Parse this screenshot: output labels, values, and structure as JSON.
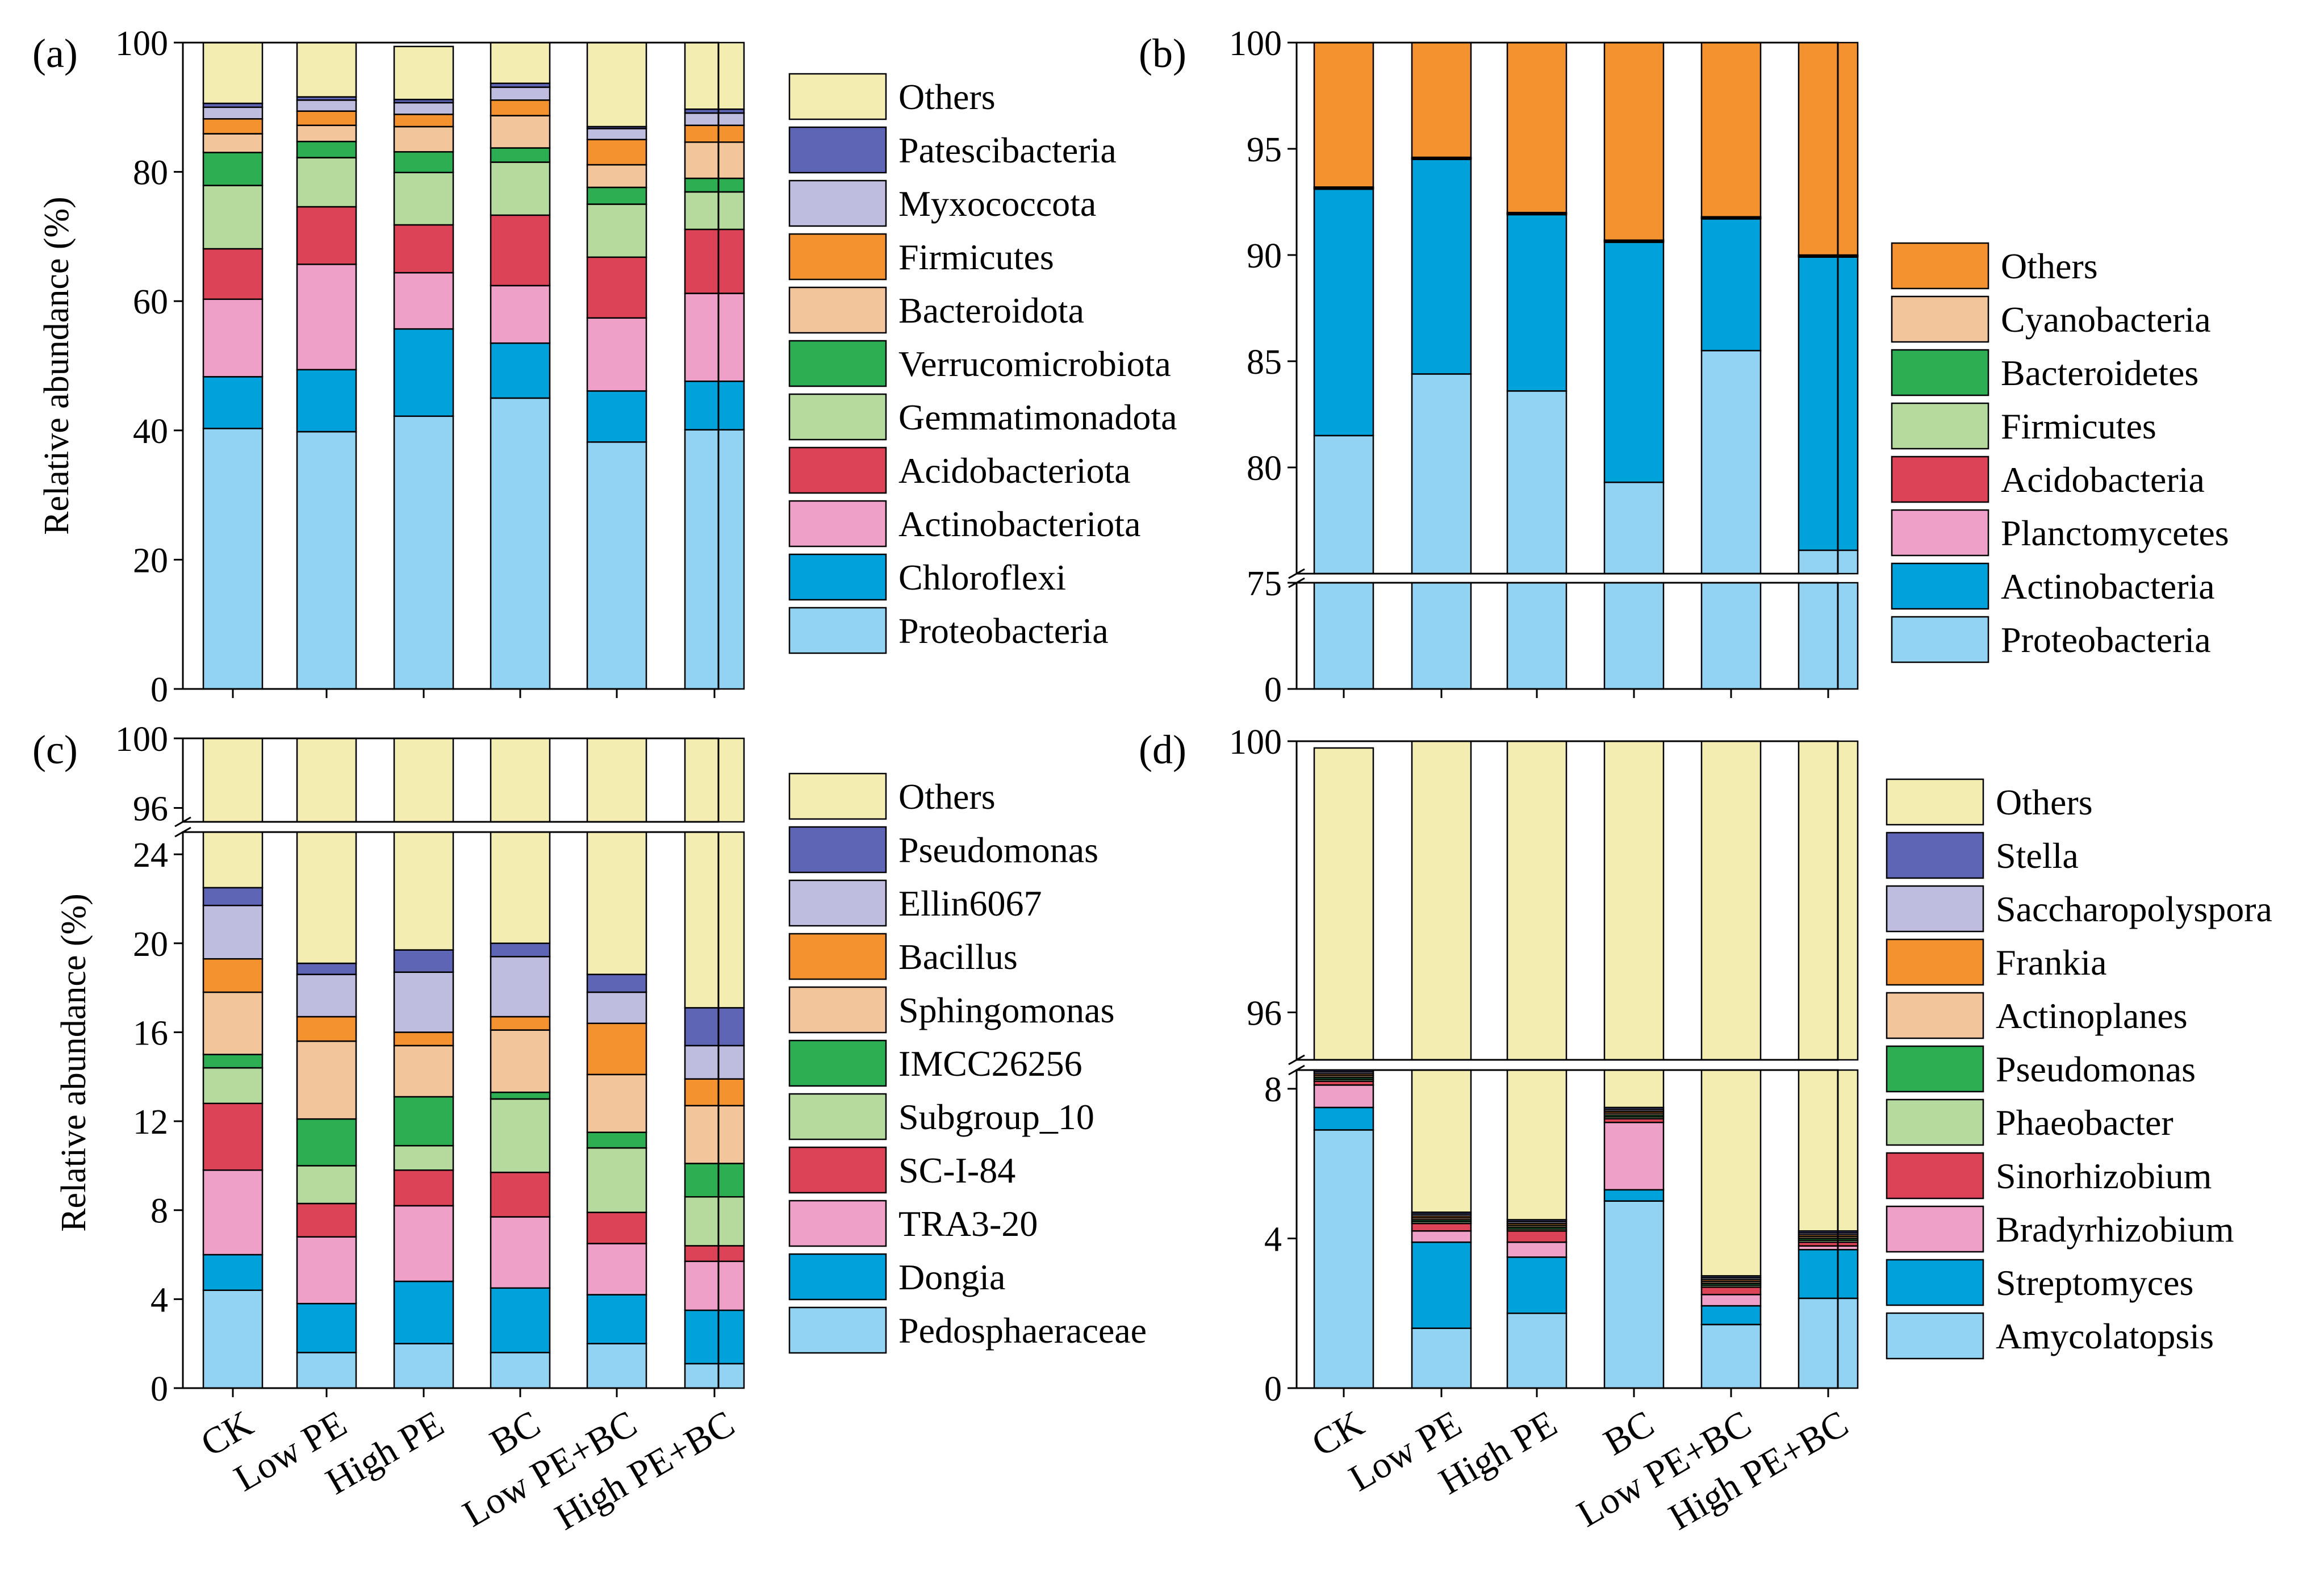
{
  "categories": [
    "CK",
    "Low PE",
    "High PE",
    "BC",
    "Low PE+BC",
    "High PE+BC"
  ],
  "chart_data": [
    {
      "panel": "(a)",
      "type": "stacked-bar",
      "ylabel": "Relative abundance (%)",
      "ylim": [
        0,
        100
      ],
      "yticks": [
        "0",
        "20",
        "40",
        "60",
        "80",
        "100"
      ],
      "series": [
        {
          "name": "Proteobacteria",
          "color": "#92D2F2",
          "values": [
            40.3,
            39.8,
            42.2,
            45.0,
            38.2,
            40.1
          ]
        },
        {
          "name": "Chloroflexi",
          "color": "#00A2DC",
          "values": [
            8.0,
            9.6,
            13.5,
            8.5,
            7.9,
            7.5
          ]
        },
        {
          "name": "Actinobacteriota",
          "color": "#EEA0C8",
          "values": [
            12.0,
            16.3,
            8.7,
            8.9,
            11.3,
            13.6
          ]
        },
        {
          "name": "Acidobacteriota",
          "color": "#DD4357",
          "values": [
            7.8,
            8.9,
            7.4,
            10.9,
            9.4,
            9.9
          ]
        },
        {
          "name": "Gemmatimonadota",
          "color": "#B5DA9E",
          "values": [
            9.8,
            7.6,
            8.1,
            8.2,
            8.2,
            5.8
          ]
        },
        {
          "name": "Verrucomicrobiota",
          "color": "#2EAE52",
          "values": [
            5.1,
            2.5,
            3.2,
            2.2,
            2.6,
            2.1
          ]
        },
        {
          "name": "Bacteroidota",
          "color": "#F2C69A",
          "values": [
            2.9,
            2.5,
            3.9,
            5.0,
            3.5,
            5.6
          ]
        },
        {
          "name": "Firmicutes",
          "color": "#F49230",
          "values": [
            2.3,
            2.2,
            1.9,
            2.4,
            3.9,
            2.6
          ]
        },
        {
          "name": "Myxococcota",
          "color": "#BFBDDF",
          "values": [
            1.8,
            1.7,
            1.8,
            2.0,
            1.7,
            1.9
          ]
        },
        {
          "name": "Patescibacteria",
          "color": "#5E65B4",
          "values": [
            0.6,
            0.5,
            0.5,
            0.6,
            0.3,
            0.6
          ]
        },
        {
          "name": "Others",
          "color": "#F3EDB1",
          "values": [
            9.4,
            8.4,
            8.2,
            6.3,
            13.3,
            10.3
          ]
        }
      ]
    },
    {
      "panel": "(b)",
      "type": "stacked-bar",
      "ylim_lower": [
        0,
        75
      ],
      "ylim_upper": [
        75,
        100
      ],
      "yticks_upper": [
        "75",
        "80",
        "85",
        "90",
        "95",
        "100"
      ],
      "yticks_lower": [
        "0"
      ],
      "series": [
        {
          "name": "Proteobacteria",
          "color": "#92D2F2",
          "values": [
            81.5,
            84.4,
            83.6,
            79.3,
            85.5,
            76.1
          ]
        },
        {
          "name": "Actinobacteria",
          "color": "#00A2DC",
          "values": [
            11.6,
            10.1,
            8.3,
            11.3,
            6.2,
            13.8
          ]
        },
        {
          "name": "Planctomycetes",
          "color": "#EEA0C8",
          "values": [
            0.03,
            0.03,
            0.03,
            0.03,
            0.03,
            0.03
          ]
        },
        {
          "name": "Acidobacteria",
          "color": "#DD4357",
          "values": [
            0.02,
            0.02,
            0.02,
            0.02,
            0.02,
            0.02
          ]
        },
        {
          "name": "Firmicutes",
          "color": "#B5DA9E",
          "values": [
            0.02,
            0.02,
            0.02,
            0.02,
            0.02,
            0.02
          ]
        },
        {
          "name": "Bacteroidetes",
          "color": "#2EAE52",
          "values": [
            0.02,
            0.02,
            0.02,
            0.02,
            0.02,
            0.02
          ]
        },
        {
          "name": "Cyanobacteria",
          "color": "#F2C69A",
          "values": [
            0.01,
            0.01,
            0.01,
            0.01,
            0.01,
            0.01
          ]
        },
        {
          "name": "Others",
          "color": "#F49230",
          "values": [
            6.8,
            5.4,
            8.0,
            9.3,
            8.2,
            10.0
          ]
        }
      ]
    },
    {
      "panel": "(c)",
      "type": "stacked-bar",
      "ylabel": "Relative abundance (%)",
      "ylim_lower": [
        0,
        25
      ],
      "ylim_upper": [
        95.2,
        100
      ],
      "yticks_lower": [
        "0",
        "4",
        "8",
        "12",
        "16",
        "20",
        "24"
      ],
      "yticks_upper": [
        "96",
        "100"
      ],
      "series": [
        {
          "name": "Pedosphaeraceae",
          "color": "#92D2F2",
          "values": [
            4.4,
            1.6,
            2.0,
            1.6,
            2.0,
            1.1
          ]
        },
        {
          "name": "Dongia",
          "color": "#00A2DC",
          "values": [
            1.6,
            2.2,
            2.8,
            2.9,
            2.2,
            2.4
          ]
        },
        {
          "name": "TRA3-20",
          "color": "#EEA0C8",
          "values": [
            3.8,
            3.0,
            3.4,
            3.2,
            2.3,
            2.2
          ]
        },
        {
          "name": "SC-I-84",
          "color": "#DD4357",
          "values": [
            3.0,
            1.5,
            1.6,
            2.0,
            1.4,
            0.7
          ]
        },
        {
          "name": "Subgroup_10",
          "color": "#B5DA9E",
          "values": [
            1.6,
            1.7,
            1.1,
            3.3,
            2.9,
            2.2
          ]
        },
        {
          "name": "IMCC26256",
          "color": "#2EAE52",
          "values": [
            0.6,
            2.1,
            2.2,
            0.3,
            0.7,
            1.5
          ]
        },
        {
          "name": "Sphingomonas",
          "color": "#F2C69A",
          "values": [
            2.8,
            3.5,
            2.3,
            2.8,
            2.6,
            2.6
          ]
        },
        {
          "name": "Bacillus",
          "color": "#F49230",
          "values": [
            1.5,
            1.1,
            0.6,
            0.6,
            2.3,
            1.2
          ]
        },
        {
          "name": "Ellin6067",
          "color": "#BFBDDF",
          "values": [
            2.4,
            1.9,
            2.7,
            2.7,
            1.4,
            1.5
          ]
        },
        {
          "name": "Pseudomonas",
          "color": "#5E65B4",
          "values": [
            0.8,
            0.5,
            1.0,
            0.6,
            0.8,
            1.7
          ]
        },
        {
          "name": "Others",
          "color": "#F3EDB1",
          "values": [
            77.5,
            80.9,
            80.3,
            80.0,
            81.4,
            82.9
          ]
        }
      ]
    },
    {
      "panel": "(d)",
      "type": "stacked-bar",
      "ylim_lower": [
        0,
        8.5
      ],
      "ylim_upper": [
        95.3,
        100
      ],
      "yticks_lower": [
        "0",
        "4",
        "8"
      ],
      "yticks_upper": [
        "96",
        "100"
      ],
      "series": [
        {
          "name": "Amycolatopsis",
          "color": "#92D2F2",
          "values": [
            6.9,
            1.6,
            2.0,
            5.0,
            1.7,
            2.4
          ]
        },
        {
          "name": "Streptomyces",
          "color": "#00A2DC",
          "values": [
            0.6,
            2.3,
            1.5,
            0.3,
            0.5,
            1.3
          ]
        },
        {
          "name": "Bradyrhizobium",
          "color": "#EEA0C8",
          "values": [
            0.6,
            0.3,
            0.4,
            1.8,
            0.3,
            0.1
          ]
        },
        {
          "name": "Sinorhizobium",
          "color": "#DD4357",
          "values": [
            0.1,
            0.2,
            0.3,
            0.1,
            0.2,
            0.1
          ]
        },
        {
          "name": "Phaeobacter",
          "color": "#B5DA9E",
          "values": [
            0.05,
            0.05,
            0.05,
            0.05,
            0.05,
            0.05
          ]
        },
        {
          "name": "Pseudomonas",
          "color": "#2EAE52",
          "values": [
            0.05,
            0.05,
            0.05,
            0.05,
            0.05,
            0.05
          ]
        },
        {
          "name": "Actinoplanes",
          "color": "#F2C69A",
          "values": [
            0.05,
            0.05,
            0.05,
            0.05,
            0.05,
            0.05
          ]
        },
        {
          "name": "Frankia",
          "color": "#F49230",
          "values": [
            0.05,
            0.05,
            0.05,
            0.05,
            0.05,
            0.05
          ]
        },
        {
          "name": "Saccharopolyspora",
          "color": "#BFBDDF",
          "values": [
            0.05,
            0.05,
            0.05,
            0.05,
            0.05,
            0.05
          ]
        },
        {
          "name": "Stella",
          "color": "#5E65B4",
          "values": [
            0.05,
            0.05,
            0.05,
            0.05,
            0.05,
            0.05
          ]
        },
        {
          "name": "Others",
          "color": "#F3EDB1",
          "values": [
            91.4,
            95.4,
            95.6,
            92.5,
            97.1,
            95.9
          ]
        }
      ]
    }
  ]
}
